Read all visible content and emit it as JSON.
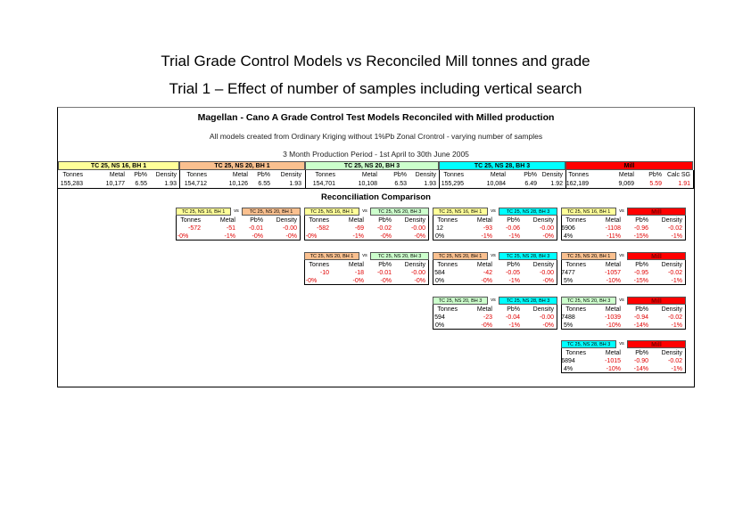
{
  "slide": {
    "title": "Trial Grade Control Models vs Reconciled Mill tonnes and grade",
    "subtitle": "Trial 1 – Effect of number of samples including vertical search"
  },
  "colors": {
    "yellow": "#ffff99",
    "peach": "#fac08f",
    "green": "#ccffcc",
    "cyan": "#00ffff",
    "red": "#ff0000"
  },
  "sheet": {
    "title": "Magellan - Cano A Grade Control Test Models Reconciled with Milled production",
    "note": "All models created from Ordinary Kriging without 1%Pb Zonal Crontrol - varying number of samples",
    "period": "3 Month Production Period - 1st April to 30th June 2005",
    "recon_title": "Reconciliation Comparison",
    "groups": [
      {
        "name": "TC 25, NS 16, BH 1",
        "color": "yellow",
        "labels": [
          "Tonnes",
          "Metal",
          "Pb%",
          "Density"
        ],
        "values": [
          "155,283",
          "10,177",
          "6.55",
          "1.93"
        ]
      },
      {
        "name": "TC 25, NS 20, BH 1",
        "color": "peach",
        "labels": [
          "Tonnes",
          "Metal",
          "Pb%",
          "Density"
        ],
        "values": [
          "154,712",
          "10,126",
          "6.55",
          "1.93"
        ]
      },
      {
        "name": "TC 25, NS 20, BH 3",
        "color": "green",
        "labels": [
          "Tonnes",
          "Metal",
          "Pb%",
          "Density"
        ],
        "values": [
          "154,701",
          "10,108",
          "6.53",
          "1.93"
        ]
      },
      {
        "name": "TC 25, NS 28, BH 3",
        "color": "cyan",
        "labels": [
          "Tonnes",
          "Metal",
          "Pb%",
          "Density"
        ],
        "values": [
          "155,295",
          "10,084",
          "6.49",
          "1.92"
        ]
      },
      {
        "name": "Mill",
        "color": "red",
        "labels": [
          "Tonnes",
          "Metal",
          "Pb%",
          "Calc SG"
        ],
        "values": [
          "162,189",
          "9,069",
          "5.59",
          "1.91"
        ]
      }
    ],
    "vs": "vs",
    "cmp_labels": [
      "Tonnes",
      "Metal",
      "Pb%",
      "Density"
    ],
    "comparisons": [
      {
        "a": "TC 25, NS 16, BH 1",
        "ac": "yellow",
        "b": "TC 25, NS 20, BH 1",
        "bc": "peach",
        "diff": [
          "-572",
          "-51",
          "-0.01",
          "-0.00"
        ],
        "pct": [
          "-0%",
          "-1%",
          "-0%",
          "-0%"
        ]
      },
      {
        "a": "TC 25, NS 16, BH 1",
        "ac": "yellow",
        "b": "TC 25, NS 20, BH 3",
        "bc": "green",
        "diff": [
          "-582",
          "-69",
          "-0.02",
          "-0.00"
        ],
        "pct": [
          "-0%",
          "-1%",
          "-0%",
          "-0%"
        ]
      },
      {
        "a": "TC 25, NS 16, BH 1",
        "ac": "yellow",
        "b": "TC 25, NS 28, BH 3",
        "bc": "cyan",
        "diff": [
          "12",
          "-93",
          "-0.06",
          "-0.00"
        ],
        "pct": [
          "0%",
          "-1%",
          "-1%",
          "-0%"
        ]
      },
      {
        "a": "TC 25, NS 16, BH 1",
        "ac": "yellow",
        "b": "Mill",
        "bc": "red",
        "diff": [
          "6906",
          "-1108",
          "-0.96",
          "-0.02"
        ],
        "pct": [
          "4%",
          "-11%",
          "-15%",
          "-1%"
        ]
      },
      {
        "a": "TC 25, NS 20, BH 1",
        "ac": "peach",
        "b": "TC 25, NS 20, BH 3",
        "bc": "green",
        "diff": [
          "-10",
          "-18",
          "-0.01",
          "-0.00"
        ],
        "pct": [
          "-0%",
          "-0%",
          "-0%",
          "-0%"
        ]
      },
      {
        "a": "TC 25, NS 20, BH 1",
        "ac": "peach",
        "b": "TC 25, NS 28, BH 3",
        "bc": "cyan",
        "diff": [
          "584",
          "-42",
          "-0.05",
          "-0.00"
        ],
        "pct": [
          "0%",
          "-0%",
          "-1%",
          "-0%"
        ]
      },
      {
        "a": "TC 25, NS 20, BH 1",
        "ac": "peach",
        "b": "Mill",
        "bc": "red",
        "diff": [
          "7477",
          "-1057",
          "-0.95",
          "-0.02"
        ],
        "pct": [
          "5%",
          "-10%",
          "-15%",
          "-1%"
        ]
      },
      {
        "a": "TC 25, NS 20, BH 3",
        "ac": "green",
        "b": "TC 25, NS 28, BH 3",
        "bc": "cyan",
        "diff": [
          "594",
          "-23",
          "-0.04",
          "-0.00"
        ],
        "pct": [
          "0%",
          "-0%",
          "-1%",
          "-0%"
        ]
      },
      {
        "a": "TC 25, NS 20, BH 3",
        "ac": "green",
        "b": "Mill",
        "bc": "red",
        "diff": [
          "7488",
          "-1039",
          "-0.94",
          "-0.02"
        ],
        "pct": [
          "5%",
          "-10%",
          "-14%",
          "-1%"
        ]
      },
      {
        "a": "TC 25, NS 28, BH 3",
        "ac": "cyan",
        "b": "Mill",
        "bc": "red",
        "diff": [
          "6894",
          "-1015",
          "-0.90",
          "-0.02"
        ],
        "pct": [
          "4%",
          "-10%",
          "-14%",
          "-1%"
        ]
      }
    ]
  }
}
